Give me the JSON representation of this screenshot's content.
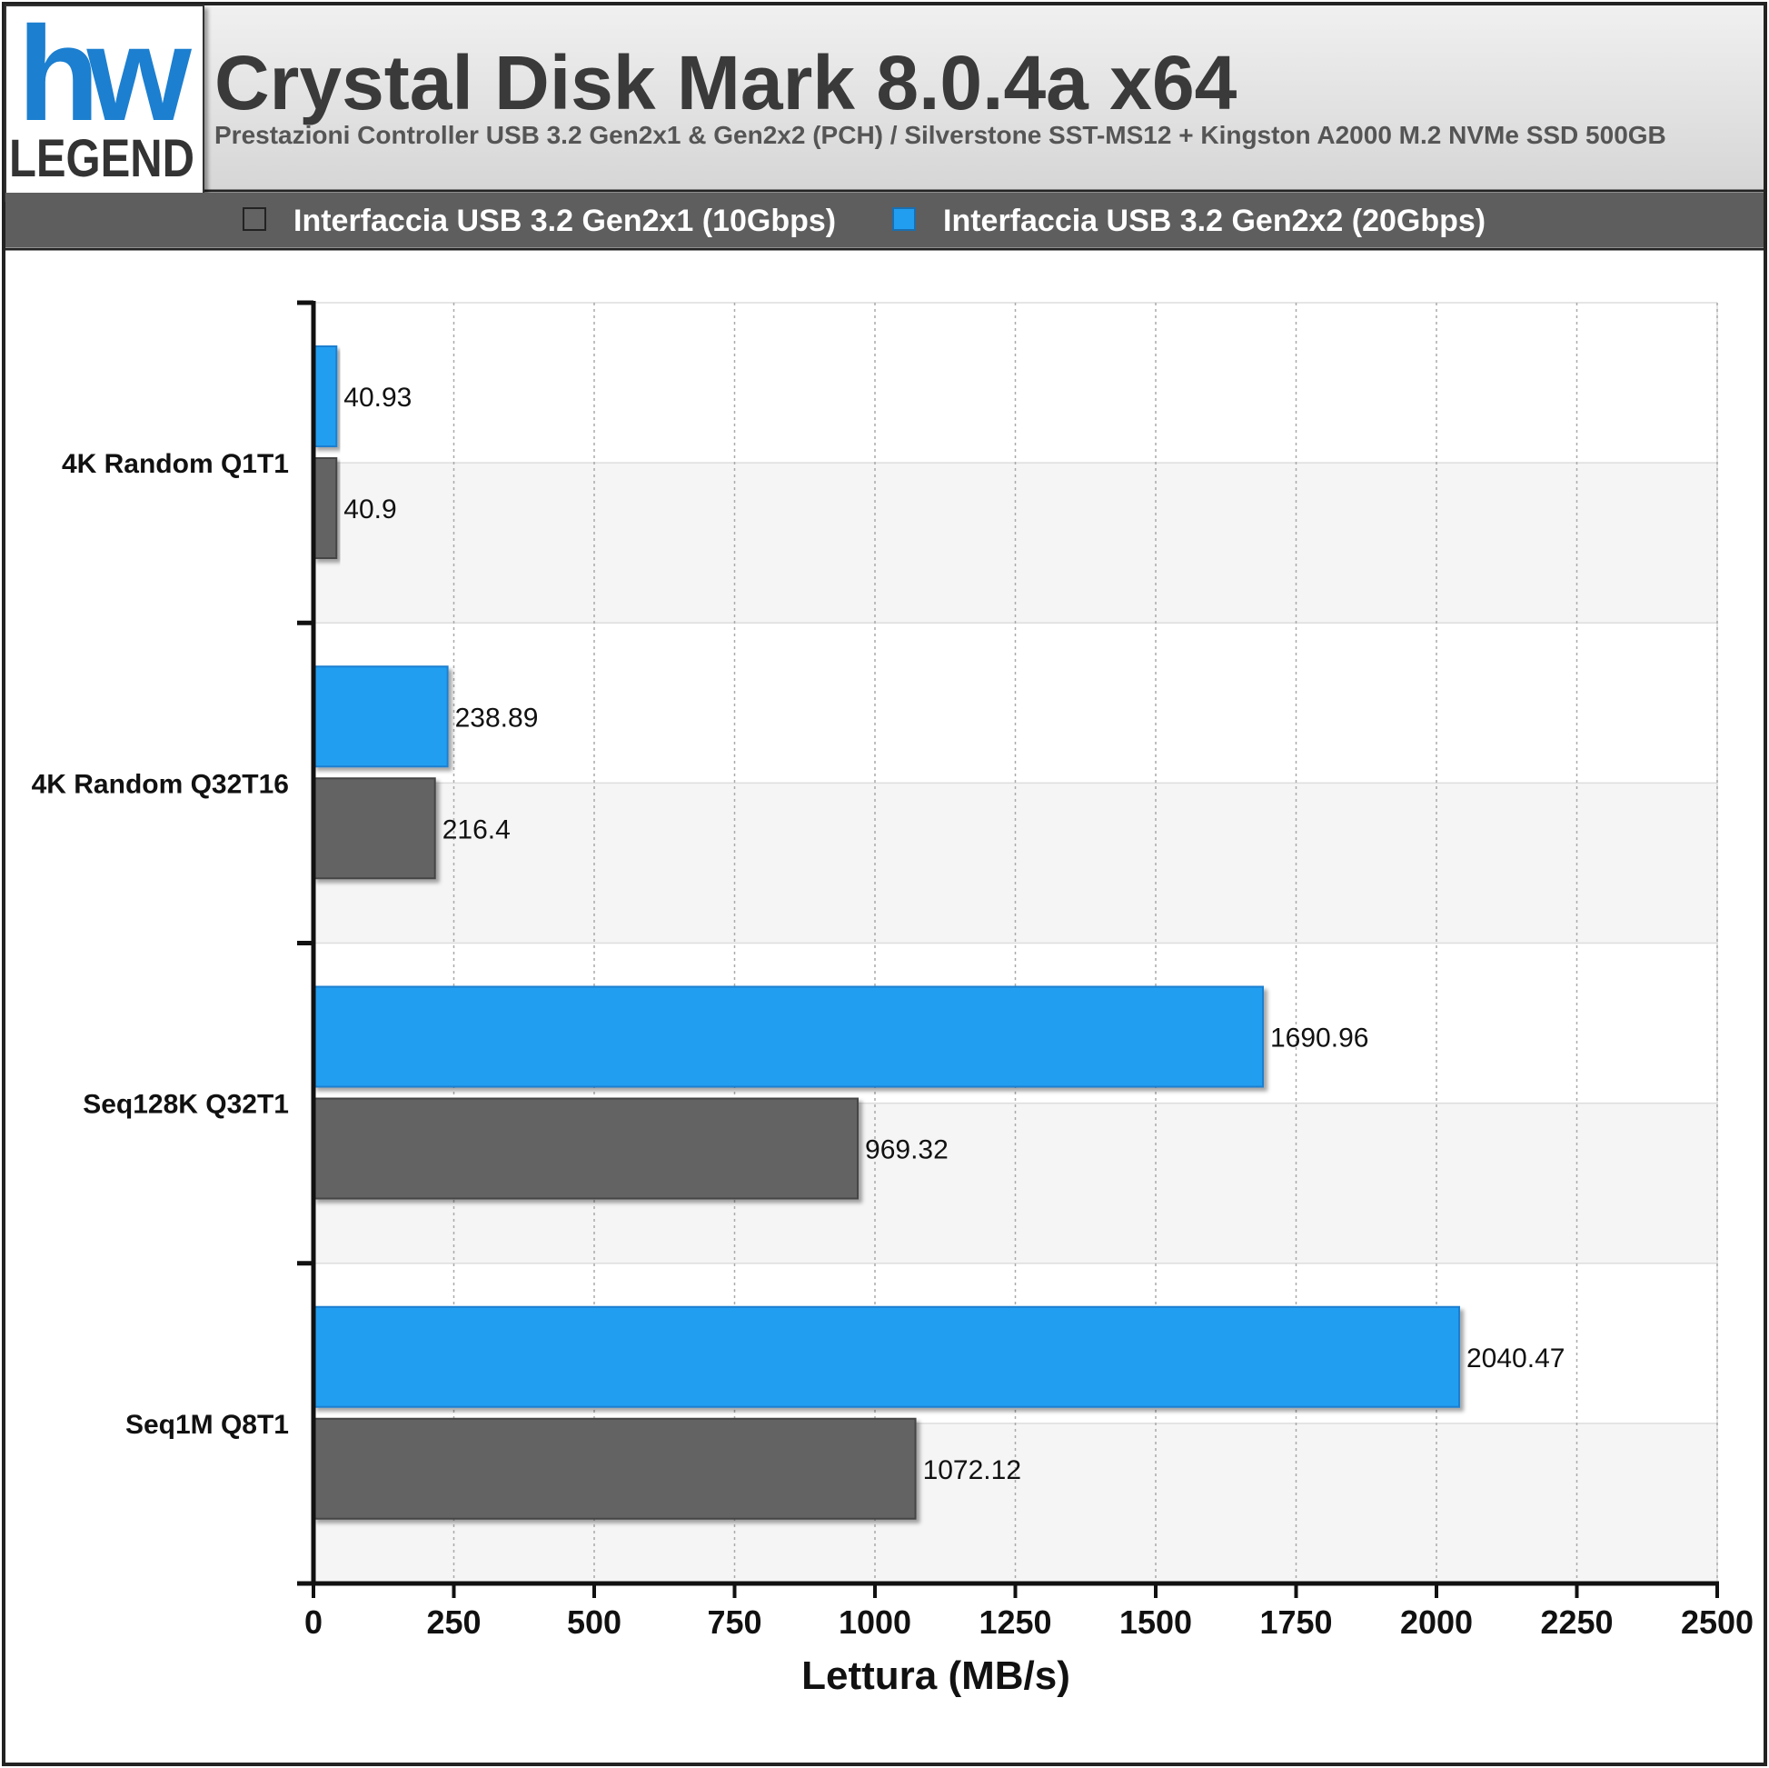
{
  "header": {
    "logo_top": "hw",
    "logo_bottom": "LEGEND",
    "title": "Crystal Disk Mark 8.0.4a x64",
    "subtitle": "Prestazioni Controller USB 3.2 Gen2x1 & Gen2x2 (PCH) / Silverstone SST-MS12 + Kingston A2000 M.2 NVMe SSD 500GB"
  },
  "legend": {
    "items": [
      {
        "label": "Interfaccia USB 3.2 Gen2x1 (10Gbps)",
        "color": "#636363"
      },
      {
        "label": "Interfaccia USB 3.2 Gen2x2 (20Gbps)",
        "color": "#229ef0"
      }
    ]
  },
  "colors": {
    "header_bg": "#e3e3e3",
    "legend_bar_bg": "#5e5e5e",
    "band_alt": "#f5f5f5",
    "logo_blue": "#1c7fd0"
  },
  "chart_data": {
    "type": "bar",
    "orientation": "horizontal",
    "title": "Crystal Disk Mark 8.0.4a x64",
    "subtitle": "Prestazioni Controller USB 3.2 Gen2x1 & Gen2x2 (PCH) / Silverstone SST-MS12 + Kingston A2000 M.2 NVMe SSD 500GB",
    "categories": [
      "4K Random Q1T1",
      "4K Random Q32T16",
      "Seq128K Q32T1",
      "Seq1M Q8T1"
    ],
    "series": [
      {
        "name": "Interfaccia USB 3.2 Gen2x2 (20Gbps)",
        "color": "#229ef0",
        "values": [
          40.93,
          238.89,
          1690.96,
          2040.47
        ],
        "labels": [
          "40.93",
          "238.89",
          "1690.96",
          "2040.47"
        ]
      },
      {
        "name": "Interfaccia USB 3.2 Gen2x1 (10Gbps)",
        "color": "#636363",
        "values": [
          40.9,
          216.4,
          969.32,
          1072.12
        ],
        "labels": [
          "40.9",
          "216.4",
          "969.32",
          "1072.12"
        ]
      }
    ],
    "xlabel": "Lettura (MB/s)",
    "xlim": [
      0,
      2500
    ],
    "xticks": [
      0,
      250,
      500,
      750,
      1000,
      1250,
      1500,
      1750,
      2000,
      2250,
      2500
    ],
    "xtick_labels": [
      "0",
      "250",
      "500",
      "750",
      "1000",
      "1250",
      "1500",
      "1750",
      "2000",
      "2250",
      "2500"
    ],
    "grid": true,
    "legend_position": "top"
  }
}
